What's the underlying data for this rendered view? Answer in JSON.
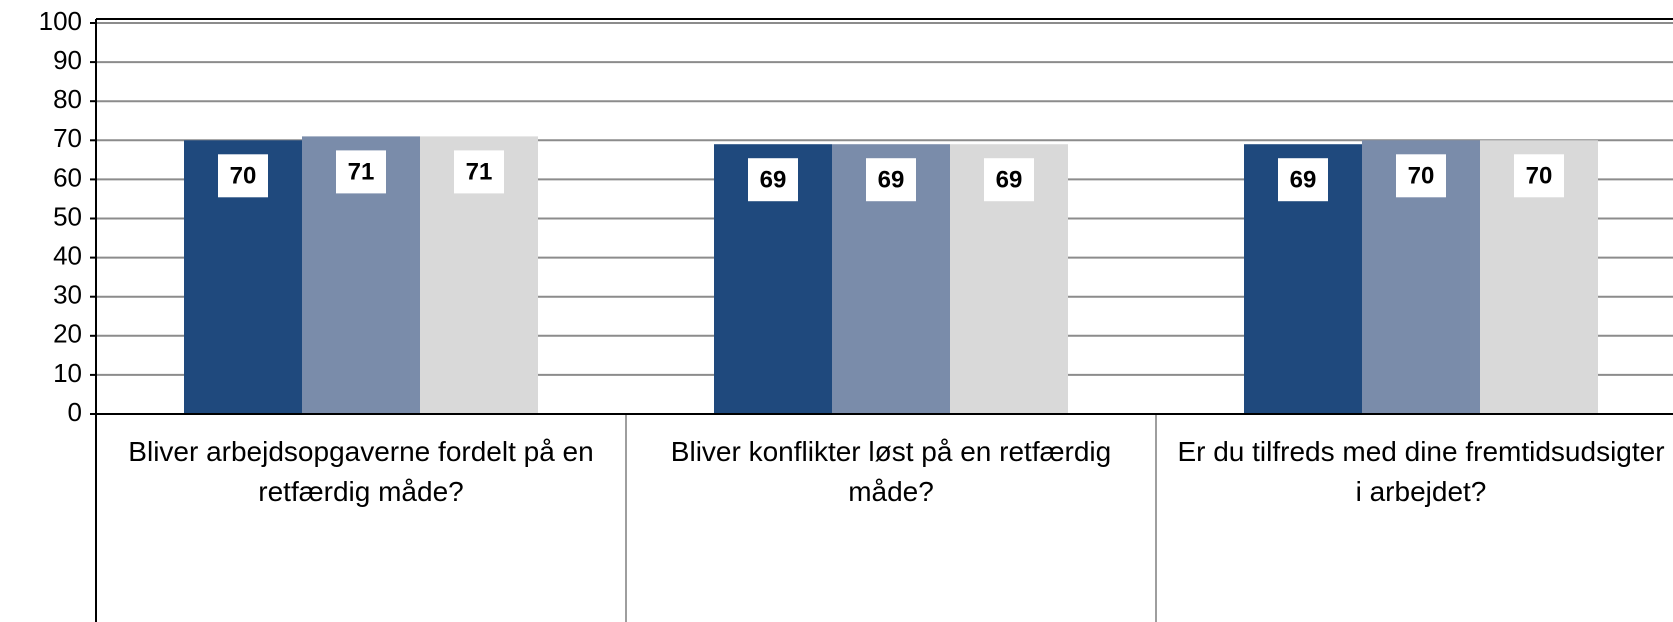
{
  "chart_data": {
    "type": "bar",
    "categories": [
      "Bliver arbejdsopgaverne fordelt på en retfærdig måde?",
      "Bliver konflikter løst på en retfærdig måde?",
      "Er du tilfreds med dine fremtidsudsigter i arbejdet?"
    ],
    "series": [
      {
        "color": "#1f497d",
        "values": [
          70,
          69,
          69
        ]
      },
      {
        "color": "#7a8caa",
        "values": [
          71,
          69,
          70
        ]
      },
      {
        "color": "#d9d9d9",
        "values": [
          71,
          69,
          70
        ]
      }
    ],
    "ylim": [
      0,
      100
    ],
    "yticks": [
      0,
      10,
      20,
      30,
      40,
      50,
      60,
      70,
      80,
      90,
      100
    ],
    "grid": true
  }
}
